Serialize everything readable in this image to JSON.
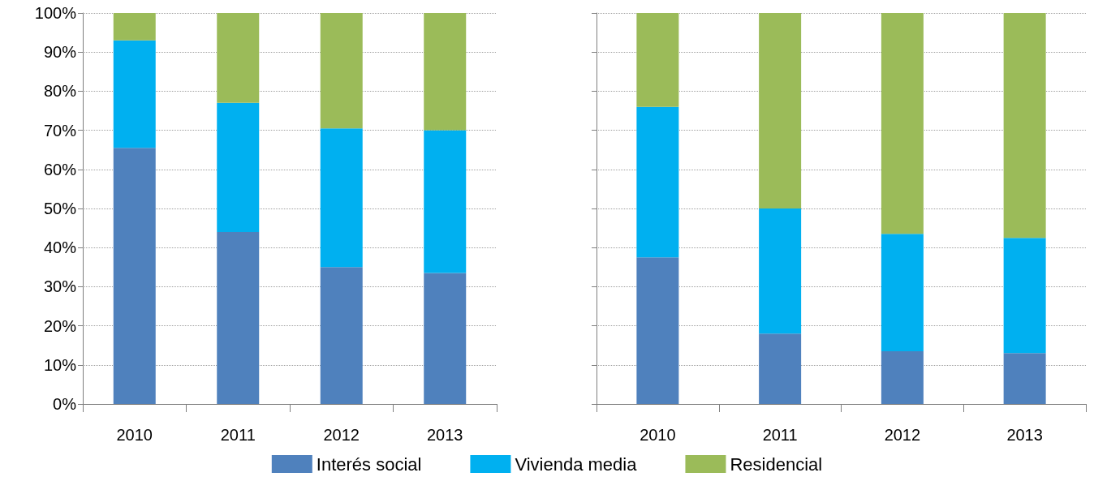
{
  "chart_data": [
    {
      "type": "bar",
      "stacked": true,
      "categories": [
        "2010",
        "2011",
        "2012",
        "2013"
      ],
      "series": [
        {
          "name": "Interés social",
          "color": "#4f81bd",
          "values": [
            65.5,
            44,
            35,
            33.5
          ]
        },
        {
          "name": "Vivienda media",
          "color": "#00b0f0",
          "values": [
            27.5,
            33,
            35.5,
            36.5
          ]
        },
        {
          "name": "Residencial",
          "color": "#9bbb59",
          "values": [
            7,
            23,
            29.5,
            30
          ]
        }
      ],
      "ylim": [
        0,
        100
      ],
      "yticks": [
        {
          "value": 0,
          "label": "0%"
        },
        {
          "value": 10,
          "label": "10%"
        },
        {
          "value": 20,
          "label": "20%"
        },
        {
          "value": 30,
          "label": "30%"
        },
        {
          "value": 40,
          "label": "40%"
        },
        {
          "value": 50,
          "label": "50%"
        },
        {
          "value": 60,
          "label": "60%"
        },
        {
          "value": 70,
          "label": "70%"
        },
        {
          "value": 80,
          "label": "80%"
        },
        {
          "value": 90,
          "label": "90%"
        },
        {
          "value": 100,
          "label": "100%"
        }
      ],
      "grid": "y",
      "legend": "bottom"
    },
    {
      "type": "bar",
      "stacked": true,
      "categories": [
        "2010",
        "2011",
        "2012",
        "2013"
      ],
      "series": [
        {
          "color": "#4f81bd",
          "values": [
            37.5,
            18,
            13.5,
            13
          ]
        },
        {
          "color": "#00b0f0",
          "values": [
            38.5,
            32,
            30,
            29.5
          ]
        },
        {
          "color": "#9bbb59",
          "values": [
            24,
            50,
            56.5,
            57.5
          ]
        }
      ],
      "ylim": [
        0,
        100
      ],
      "yticks": [
        {
          "value": 0,
          "label": null
        },
        {
          "value": 10,
          "label": null
        },
        {
          "value": 20,
          "label": null
        },
        {
          "value": 30,
          "label": null
        },
        {
          "value": 40,
          "label": null
        },
        {
          "value": 50,
          "label": null
        },
        {
          "value": 60,
          "label": null
        },
        {
          "value": 70,
          "label": null
        },
        {
          "value": 80,
          "label": null
        },
        {
          "value": 90,
          "label": null
        },
        {
          "value": 100,
          "label": null
        }
      ],
      "grid": "y",
      "tick_labels": "x"
    }
  ]
}
